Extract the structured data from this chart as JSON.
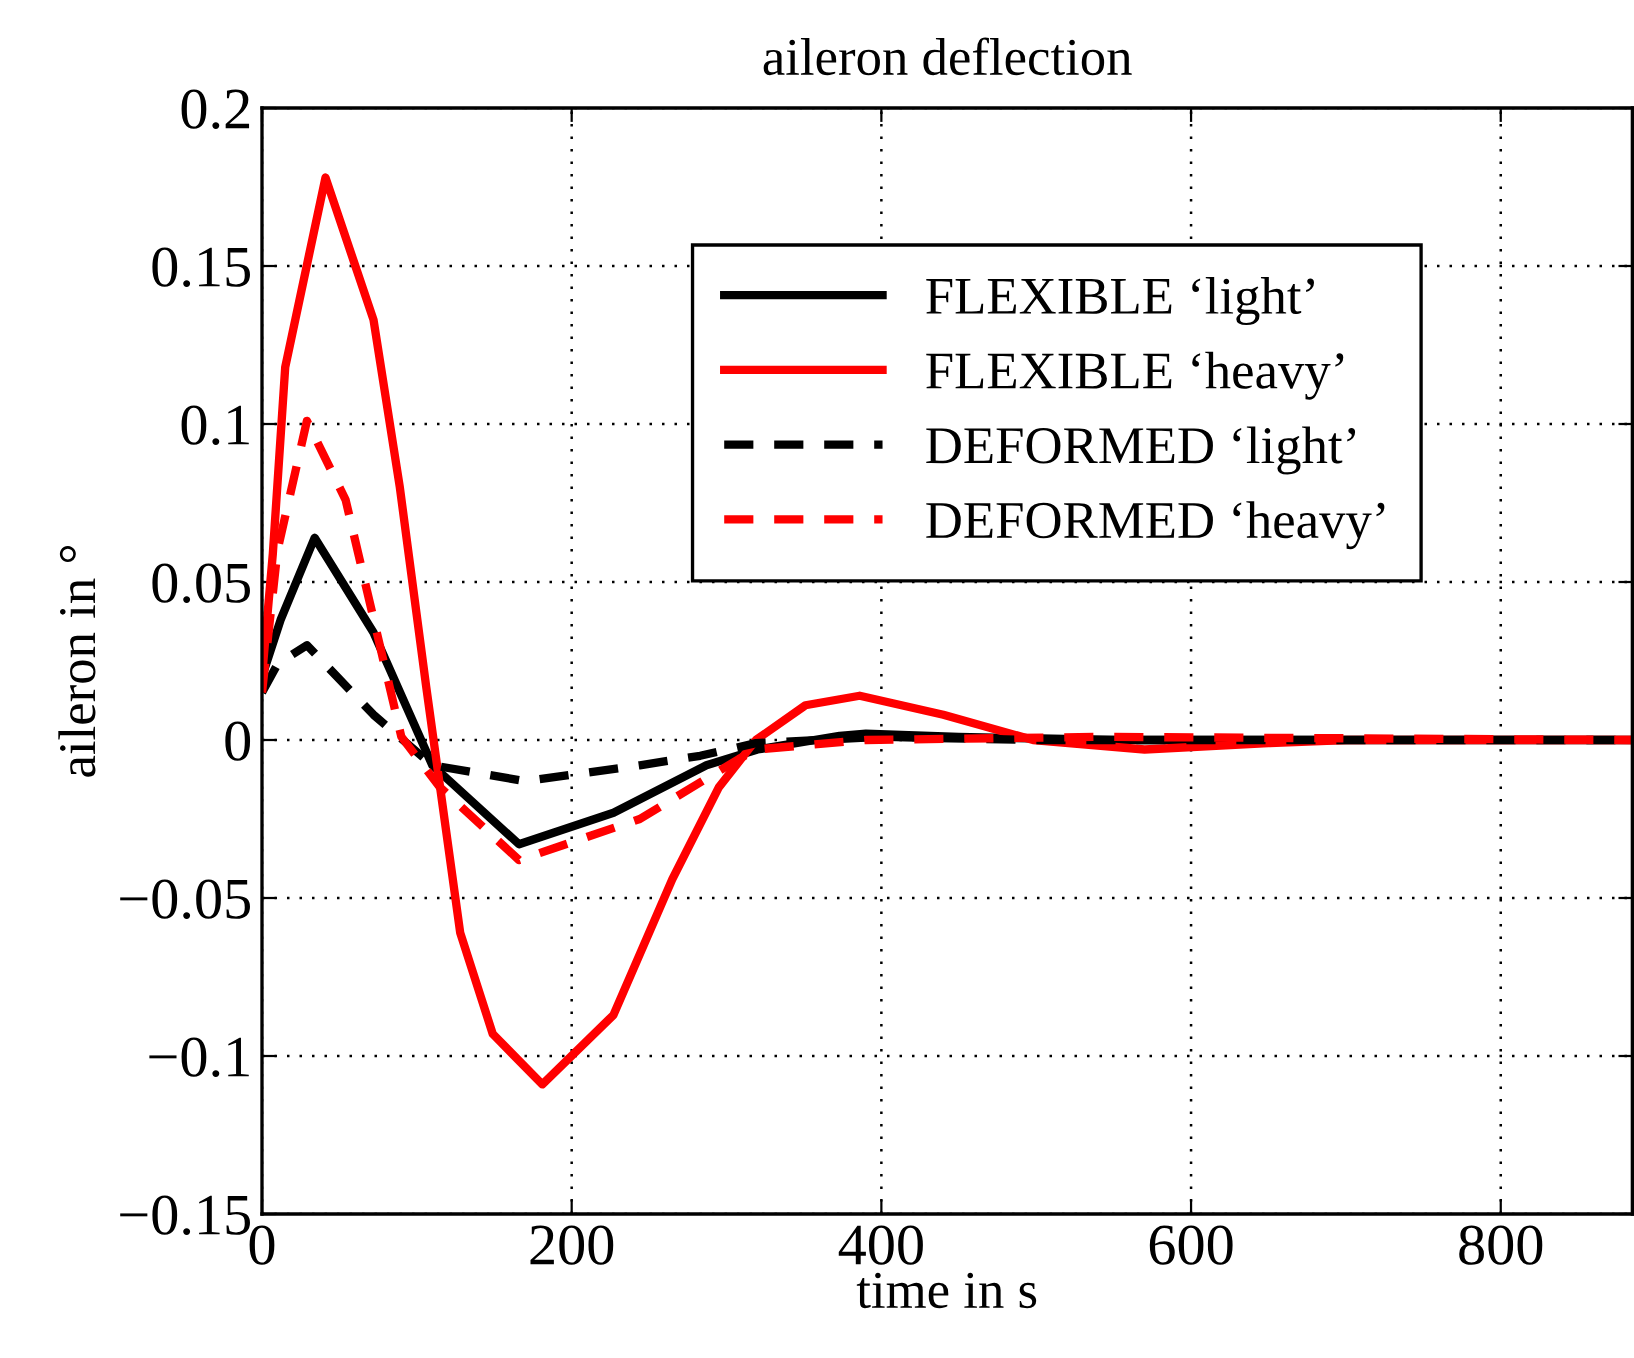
{
  "chart_data": {
    "type": "line",
    "title": "aileron deflection",
    "xlabel": "time in s",
    "ylabel": "aileron in °",
    "xlim": [
      0,
      885
    ],
    "ylim": [
      -0.15,
      0.2
    ],
    "xticks": [
      0,
      200,
      400,
      600,
      800
    ],
    "yticks": [
      {
        "value": -0.15,
        "label": "−0.15"
      },
      {
        "value": -0.1,
        "label": "−0.1"
      },
      {
        "value": -0.05,
        "label": "−0.05"
      },
      0,
      0.05,
      0.1,
      0.15,
      0.2
    ],
    "grid": true,
    "legend": "top",
    "marker": "none",
    "series": [
      {
        "name": "FLEXIBLE ‘light’",
        "color": "#000000",
        "line_style": "solid",
        "x": [
          0,
          12,
          34,
          72,
          110,
          166,
          227,
          287,
          320,
          373,
          390,
          450,
          550,
          700,
          885
        ],
        "values": [
          0.02,
          0.038,
          0.064,
          0.034,
          -0.008,
          -0.033,
          -0.023,
          -0.008,
          -0.003,
          0.0013,
          0.002,
          0.001,
          0,
          0,
          0
        ]
      },
      {
        "name": "FLEXIBLE ‘heavy’",
        "color": "#ff0000",
        "line_style": "solid",
        "x": [
          0,
          7,
          15,
          41,
          72,
          89,
          106,
          128,
          149,
          181,
          227,
          265,
          295,
          319,
          351,
          386,
          440,
          498,
          570,
          650,
          700,
          885
        ],
        "values": [
          0.02,
          0.059,
          0.118,
          0.178,
          0.133,
          0.08,
          0.017,
          -0.061,
          -0.093,
          -0.109,
          -0.087,
          -0.044,
          -0.015,
          0,
          0.011,
          0.014,
          0.008,
          0,
          -0.003,
          -0.001,
          0,
          0
        ]
      },
      {
        "name": "DEFORMED ‘light’",
        "color": "#000000",
        "line_style": "dashed",
        "x": [
          0,
          10,
          29,
          72,
          110,
          170,
          244,
          283,
          319,
          400,
          500,
          885
        ],
        "values": [
          0.015,
          0.024,
          0.03,
          0.008,
          -0.008,
          -0.013,
          -0.008,
          -0.005,
          -0.001,
          0.001,
          0,
          0
        ]
      },
      {
        "name": "DEFORMED ‘heavy’",
        "color": "#ff0000",
        "line_style": "dashed",
        "x": [
          0,
          10,
          29,
          54,
          90,
          115,
          166,
          244,
          308,
          319,
          390,
          540,
          885
        ],
        "values": [
          0.015,
          0.06,
          0.101,
          0.076,
          0.001,
          -0.015,
          -0.038,
          -0.025,
          -0.006,
          -0.003,
          0,
          0.001,
          0
        ]
      }
    ]
  }
}
